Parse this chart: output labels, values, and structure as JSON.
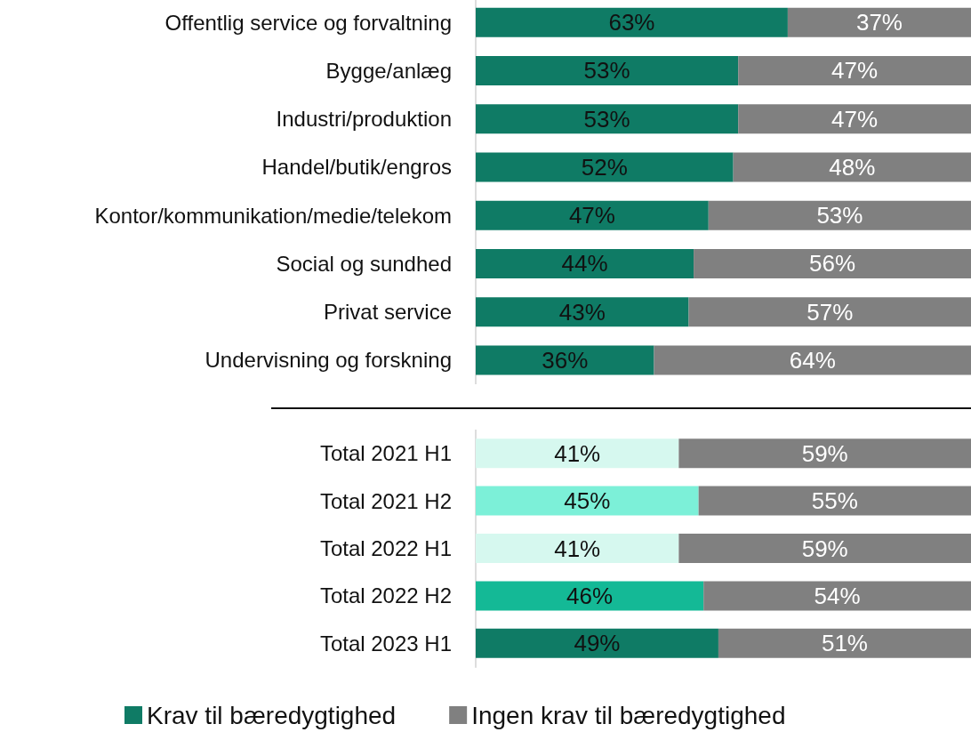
{
  "chart_data": [
    {
      "type": "bar",
      "orientation": "horizontal",
      "stacked": true,
      "categories": [
        "Offentlig service og forvaltning",
        "Bygge/anlæg",
        "Industri/produktion",
        "Handel/butik/engros",
        "Kontor/kommunikation/medie/telekom",
        "Social og sundhed",
        "Privat service",
        "Undervisning og forskning"
      ],
      "xlim": [
        0,
        100
      ],
      "tick_labels": "y",
      "legend": false,
      "series": [
        {
          "color": "#0f7b65",
          "values": [
            63,
            53,
            53,
            52,
            47,
            44,
            43,
            36
          ],
          "value_labels": [
            "63%",
            "53%",
            "53%",
            "52%",
            "47%",
            "44%",
            "43%",
            "36%"
          ]
        },
        {
          "color": "#808080",
          "values": [
            37,
            47,
            47,
            48,
            53,
            56,
            57,
            64
          ],
          "value_labels": [
            "37%",
            "47%",
            "47%",
            "48%",
            "53%",
            "56%",
            "57%",
            "64%"
          ]
        }
      ]
    },
    {
      "type": "bar",
      "orientation": "horizontal",
      "stacked": true,
      "categories": [
        "Total 2021 H1",
        "Total 2021 H2",
        "Total 2022 H1",
        "Total 2022 H2",
        "Total 2023 H1"
      ],
      "xlim": [
        0,
        100
      ],
      "tick_labels": "y",
      "legend": "bottom",
      "series": [
        {
          "name": "Krav til bæredygtighed",
          "color": "#0f7b65",
          "colors": [
            "#d6f8ef",
            "#7cf0d8",
            "#d6f8ef",
            "#14b996",
            "#0f7b65"
          ],
          "values": [
            41,
            45,
            41,
            46,
            49
          ],
          "value_labels": [
            "41%",
            "45%",
            "41%",
            "46%",
            "49%"
          ]
        },
        {
          "name": "Ingen krav til bæredygtighed",
          "color": "#808080",
          "values": [
            59,
            55,
            59,
            54,
            51
          ],
          "value_labels": [
            "59%",
            "55%",
            "59%",
            "54%",
            "51%"
          ]
        }
      ]
    }
  ]
}
